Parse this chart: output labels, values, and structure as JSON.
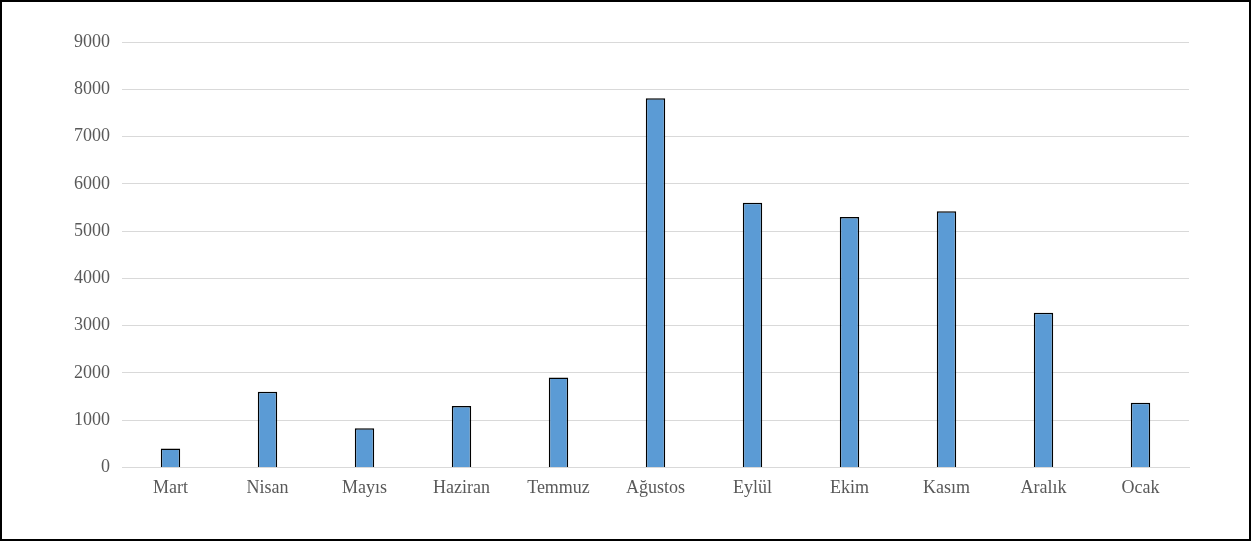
{
  "chart_data": {
    "type": "bar",
    "categories": [
      "Mart",
      "Nisan",
      "Mayıs",
      "Haziran",
      "Temmuz",
      "Ağustos",
      "Eylül",
      "Ekim",
      "Kasım",
      "Aralık",
      "Ocak"
    ],
    "values": [
      400,
      1600,
      830,
      1300,
      1900,
      7810,
      5600,
      5300,
      5420,
      3270,
      1370
    ],
    "color": "#5b9bd5",
    "ylim": [
      0,
      9000
    ],
    "yticks": [
      0,
      1000,
      2000,
      3000,
      4000,
      5000,
      6000,
      7000,
      8000,
      9000
    ],
    "grid": "y",
    "legend": false
  }
}
